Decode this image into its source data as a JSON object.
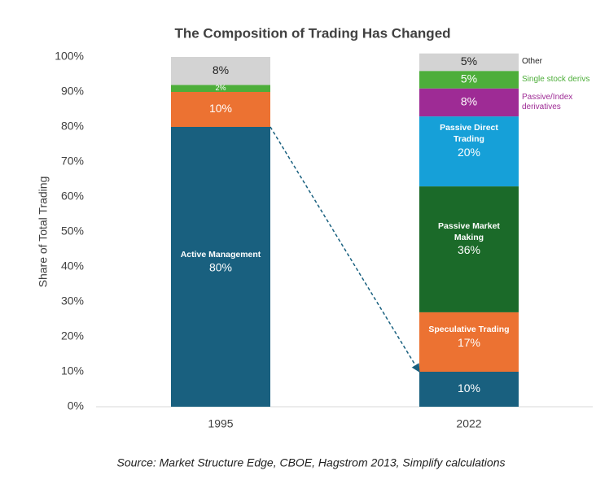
{
  "chart_data": {
    "type": "stacked-bar",
    "title": "The Composition of Trading Has Changed",
    "y_label": "Share of Total Trading",
    "source": "Source: Market Structure Edge, CBOE, Hagstrom 2013, Simplify calculations",
    "categories": [
      "1995",
      "2022"
    ],
    "ylim": [
      0,
      100
    ],
    "yticks": [
      {
        "value": 0,
        "label": "0%"
      },
      {
        "value": 10,
        "label": "10%"
      },
      {
        "value": 20,
        "label": "20%"
      },
      {
        "value": 30,
        "label": "30%"
      },
      {
        "value": 40,
        "label": "40%"
      },
      {
        "value": 50,
        "label": "50%"
      },
      {
        "value": 60,
        "label": "60%"
      },
      {
        "value": 70,
        "label": "70%"
      },
      {
        "value": 80,
        "label": "80%"
      },
      {
        "value": 90,
        "label": "90%"
      },
      {
        "value": 100,
        "label": "100%"
      }
    ],
    "series": [
      {
        "name": "Active Management",
        "color": "#19607f",
        "values": [
          80,
          10
        ],
        "value_labels": [
          "80%",
          "10%"
        ],
        "name_at": 0,
        "name_place": "inside"
      },
      {
        "name": "Speculative Trading",
        "color": "#ec7232",
        "values": [
          10,
          17
        ],
        "value_labels": [
          "10%",
          "17%"
        ],
        "name_at": 1,
        "name_place": "inside"
      },
      {
        "name": "Passive Market Making",
        "color": "#1b6a29",
        "values": [
          null,
          36
        ],
        "value_labels": [
          null,
          "36%"
        ],
        "name_at": 1,
        "name_place": "inside"
      },
      {
        "name": "Passive Direct Trading",
        "color": "#16a0d8",
        "values": [
          null,
          20
        ],
        "value_labels": [
          null,
          "20%"
        ],
        "name_at": 1,
        "name_place": "inside"
      },
      {
        "name": "Passive/Index derivatives",
        "color": "#9e2b95",
        "values": [
          null,
          8
        ],
        "value_labels": [
          null,
          "8%"
        ],
        "name_at": 1,
        "name_place": "right"
      },
      {
        "name": "Single stock derivs",
        "color": "#4dae3a",
        "values": [
          2,
          5
        ],
        "value_labels": [
          "2%",
          "5%"
        ],
        "name_at": 1,
        "name_place": "right"
      },
      {
        "name": "Other",
        "color": "#d3d3d3",
        "values": [
          8,
          5
        ],
        "value_labels": [
          "8%",
          "5%"
        ],
        "name_at": 1,
        "name_place": "right"
      }
    ]
  }
}
